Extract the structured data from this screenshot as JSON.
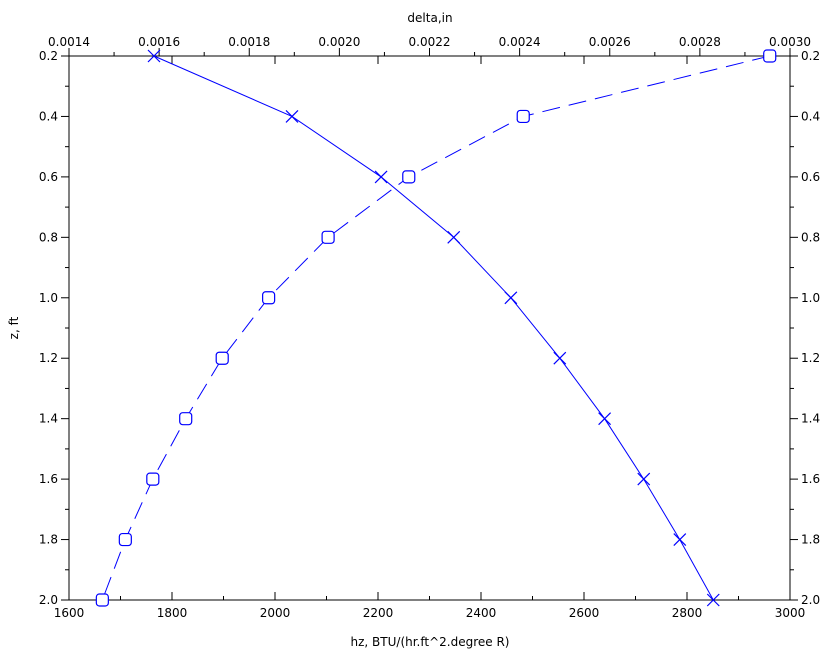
{
  "chart_data": {
    "type": "line",
    "title": "",
    "xlabel": "hz, BTU/(hr.ft^2.degree R)",
    "ylabel": "z, ft",
    "x2label": "delta,in",
    "xlim": [
      1600,
      3000
    ],
    "x2lim": [
      0.0014,
      0.003
    ],
    "ylim": [
      0.2,
      2.0
    ],
    "y_inverted": true,
    "grid": false,
    "x_ticks": [
      "1600",
      "1800",
      "2000",
      "2200",
      "2400",
      "2600",
      "2800",
      "3000"
    ],
    "x2_ticks": [
      "0.0014",
      "0.0016",
      "0.0018",
      "0.0020",
      "0.0022",
      "0.0024",
      "0.0026",
      "0.0028",
      "0.0030"
    ],
    "y_ticks": [
      "0.2",
      "0.4",
      "0.6",
      "0.8",
      "1.0",
      "1.2",
      "1.4",
      "1.6",
      "1.8",
      "2.0"
    ],
    "color": "#0000ff",
    "series": [
      {
        "axis": "bottom",
        "line_style": "solid",
        "marker": "x",
        "points": [
          {
            "x": 1765,
            "y": 0.2
          },
          {
            "x": 2033,
            "y": 0.4
          },
          {
            "x": 2206,
            "y": 0.6
          },
          {
            "x": 2347,
            "y": 0.8
          },
          {
            "x": 2458,
            "y": 1.0
          },
          {
            "x": 2553,
            "y": 1.2
          },
          {
            "x": 2640,
            "y": 1.4
          },
          {
            "x": 2716,
            "y": 1.6
          },
          {
            "x": 2786,
            "y": 1.8
          },
          {
            "x": 2851,
            "y": 2.0
          }
        ]
      },
      {
        "axis": "top",
        "line_style": "dashed",
        "marker": "square",
        "points": [
          {
            "x": 0.002955,
            "y": 0.2
          },
          {
            "x": 0.002408,
            "y": 0.4
          },
          {
            "x": 0.002154,
            "y": 0.6
          },
          {
            "x": 0.001975,
            "y": 0.8
          },
          {
            "x": 0.001843,
            "y": 1.0
          },
          {
            "x": 0.00174,
            "y": 1.2
          },
          {
            "x": 0.001659,
            "y": 1.4
          },
          {
            "x": 0.001586,
            "y": 1.6
          },
          {
            "x": 0.001525,
            "y": 1.8
          },
          {
            "x": 0.001474,
            "y": 2.0
          }
        ]
      }
    ]
  }
}
